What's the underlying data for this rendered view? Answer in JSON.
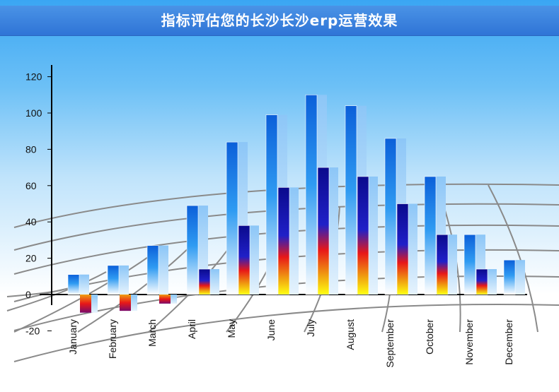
{
  "title": "指标评估您的长沙长沙erp运营效果",
  "chart_data": {
    "type": "bar",
    "categories": [
      "January",
      "February",
      "March",
      "April",
      "May",
      "June",
      "July",
      "August",
      "September",
      "October",
      "November",
      "December"
    ],
    "series": [
      {
        "values": [
          11,
          16,
          27,
          49,
          84,
          99,
          110,
          104,
          86,
          65,
          33,
          19
        ]
      },
      {
        "values": [
          -10,
          -9,
          -5,
          14,
          38,
          59,
          70,
          65,
          50,
          33,
          14,
          null
        ]
      }
    ],
    "yticks": [
      -20,
      0,
      20,
      40,
      60,
      80,
      100,
      120
    ],
    "ylim": [
      -20,
      120
    ],
    "grid": "perspective floor",
    "colors": {
      "bar1_top": "#0b5fd9",
      "bar1_bottom": "#ffffff",
      "bar2_top": "#0a0a8c",
      "bar2_mid": "#e81818",
      "bar2_bottom": "#ffff10",
      "axis": "#000000"
    }
  }
}
